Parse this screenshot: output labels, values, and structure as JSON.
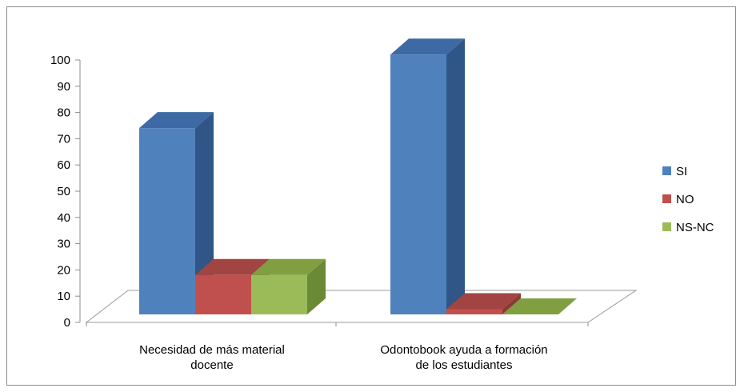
{
  "chart_data": {
    "type": "bar",
    "title": "",
    "xlabel": "",
    "ylabel": "",
    "ylim": [
      0,
      100
    ],
    "y_ticks": [
      "0",
      "10",
      "20",
      "30",
      "40",
      "50",
      "60",
      "70",
      "80",
      "90",
      "100"
    ],
    "categories": [
      [
        "Necesidad de más material",
        "docente"
      ],
      [
        "Odontobook ayuda a formación",
        "de los estudiantes"
      ]
    ],
    "series": [
      {
        "name": "SI",
        "values": [
          71,
          99
        ],
        "color": "#4f81bd",
        "side": "#2f5686",
        "top": "#3d6aa4"
      },
      {
        "name": "NO",
        "values": [
          15,
          2
        ],
        "color": "#c0504d",
        "side": "#8c3836",
        "top": "#a14442"
      },
      {
        "name": "NS-NC",
        "values": [
          15,
          0
        ],
        "color": "#9bbb59",
        "side": "#6b8a35",
        "top": "#7f9f41"
      }
    ],
    "legend_position": "right",
    "grid": false,
    "style": "3d-clustered-column"
  }
}
